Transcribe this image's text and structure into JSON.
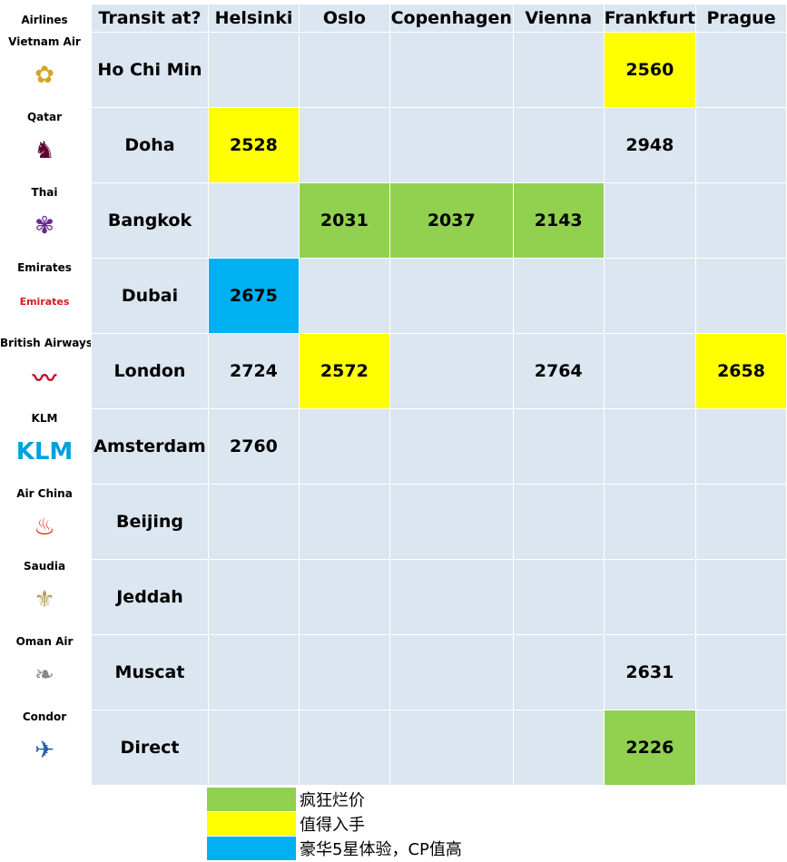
{
  "airlines_header": "Airlines",
  "airlines": [
    {
      "name": "Vietnam Air",
      "logo": "lotus-logo",
      "logo_text": "✿",
      "color": "#d4a52a"
    },
    {
      "name": "Qatar",
      "logo": "oryx-logo",
      "logo_text": "♞",
      "color": "#5c0632"
    },
    {
      "name": "Thai",
      "logo": "thai-orchid-logo",
      "logo_text": "✾",
      "color": "#6a2a8c"
    },
    {
      "name": "Emirates",
      "logo": "emirates-logo",
      "logo_text": "Emirates",
      "color": "#d71921"
    },
    {
      "name": "British Airways",
      "logo": "speedmarque-logo",
      "logo_text": "〰",
      "color": "#c8102e"
    },
    {
      "name": "KLM",
      "logo": "klm-logo",
      "logo_text": "KLM",
      "color": "#00a1de"
    },
    {
      "name": "Air China",
      "logo": "phoenix-logo",
      "logo_text": "♨",
      "color": "#d81e05"
    },
    {
      "name": "Saudia",
      "logo": "palm-logo",
      "logo_text": "⚜",
      "color": "#b59a5a"
    },
    {
      "name": "Oman Air",
      "logo": "wing-logo",
      "logo_text": "❧",
      "color": "#888888"
    },
    {
      "name": "Condor",
      "logo": "condor-logo",
      "logo_text": "✈",
      "color": "#2b5ea7"
    }
  ],
  "table": {
    "headers": [
      "Transit at?",
      "Helsinki",
      "Oslo",
      "Copenhagen",
      "Vienna",
      "Frankfurt",
      "Prague"
    ],
    "rows": [
      {
        "transit": "Ho Chi Min",
        "cells": [
          [
            "",
            ""
          ],
          [
            "",
            ""
          ],
          [
            "",
            ""
          ],
          [
            "",
            ""
          ],
          [
            "2560",
            "yellow"
          ],
          [
            "",
            ""
          ]
        ]
      },
      {
        "transit": "Doha",
        "cells": [
          [
            "2528",
            "yellow"
          ],
          [
            "",
            ""
          ],
          [
            "",
            ""
          ],
          [
            "",
            ""
          ],
          [
            "2948",
            ""
          ],
          [
            "",
            ""
          ]
        ]
      },
      {
        "transit": "Bangkok",
        "cells": [
          [
            "",
            ""
          ],
          [
            "2031",
            "green"
          ],
          [
            "2037",
            "green"
          ],
          [
            "2143",
            "green"
          ],
          [
            "",
            ""
          ],
          [
            "",
            ""
          ]
        ]
      },
      {
        "transit": "Dubai",
        "cells": [
          [
            "2675",
            "blue"
          ],
          [
            "",
            ""
          ],
          [
            "",
            ""
          ],
          [
            "",
            ""
          ],
          [
            "",
            ""
          ],
          [
            "",
            ""
          ]
        ]
      },
      {
        "transit": "London",
        "cells": [
          [
            "2724",
            ""
          ],
          [
            "2572",
            "yellow"
          ],
          [
            "",
            ""
          ],
          [
            "2764",
            ""
          ],
          [
            "",
            ""
          ],
          [
            "2658",
            "yellow"
          ]
        ]
      },
      {
        "transit": "Amsterdam",
        "cells": [
          [
            "2760",
            ""
          ],
          [
            "",
            ""
          ],
          [
            "",
            ""
          ],
          [
            "",
            ""
          ],
          [
            "",
            ""
          ],
          [
            "",
            ""
          ]
        ]
      },
      {
        "transit": "Beijing",
        "cells": [
          [
            "",
            ""
          ],
          [
            "",
            ""
          ],
          [
            "",
            ""
          ],
          [
            "",
            ""
          ],
          [
            "",
            ""
          ],
          [
            "",
            ""
          ]
        ]
      },
      {
        "transit": "Jeddah",
        "cells": [
          [
            "",
            ""
          ],
          [
            "",
            ""
          ],
          [
            "",
            ""
          ],
          [
            "",
            ""
          ],
          [
            "",
            ""
          ],
          [
            "",
            ""
          ]
        ]
      },
      {
        "transit": "Muscat",
        "cells": [
          [
            "",
            ""
          ],
          [
            "",
            ""
          ],
          [
            "",
            ""
          ],
          [
            "",
            ""
          ],
          [
            "2631",
            ""
          ],
          [
            "",
            ""
          ]
        ]
      },
      {
        "transit": "Direct",
        "cells": [
          [
            "",
            ""
          ],
          [
            "",
            ""
          ],
          [
            "",
            ""
          ],
          [
            "",
            ""
          ],
          [
            "2226",
            "green"
          ],
          [
            "",
            ""
          ]
        ]
      }
    ]
  },
  "legend": [
    {
      "label": "疯狂烂价",
      "color": "green"
    },
    {
      "label": "值得入手",
      "color": "yellow"
    },
    {
      "label": "豪华5星体验，CP值高",
      "color": "blue"
    }
  ],
  "colors": {
    "green": "#92d050",
    "yellow": "#ffff00",
    "blue": "#00b0f0",
    "cell": "#dce6f1"
  }
}
